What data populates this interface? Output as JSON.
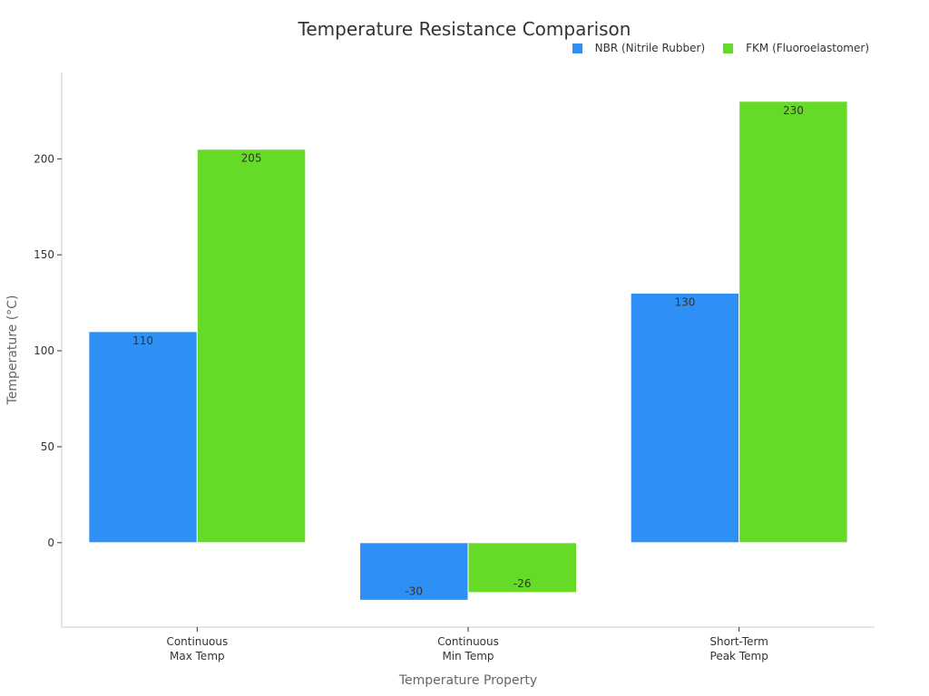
{
  "chart_data": {
    "type": "bar",
    "title": "Temperature Resistance Comparison",
    "xlabel": "Temperature Property",
    "ylabel": "Temperature (°C)",
    "categories": [
      [
        "Continuous",
        "Max Temp"
      ],
      [
        "Continuous",
        "Min Temp"
      ],
      [
        "Short-Term",
        "Peak Temp"
      ]
    ],
    "series": [
      {
        "name": "NBR (Nitrile Rubber)",
        "color": "#2e8ff5",
        "values": [
          110,
          -30,
          130
        ]
      },
      {
        "name": "FKM (Fluoroelastomer)",
        "color": "#66db27",
        "values": [
          205,
          -26,
          230
        ]
      }
    ],
    "yticks": [
      0,
      50,
      100,
      150,
      200
    ],
    "ylim": [
      -44,
      245
    ],
    "grid": false,
    "legend_position": "top-right"
  }
}
